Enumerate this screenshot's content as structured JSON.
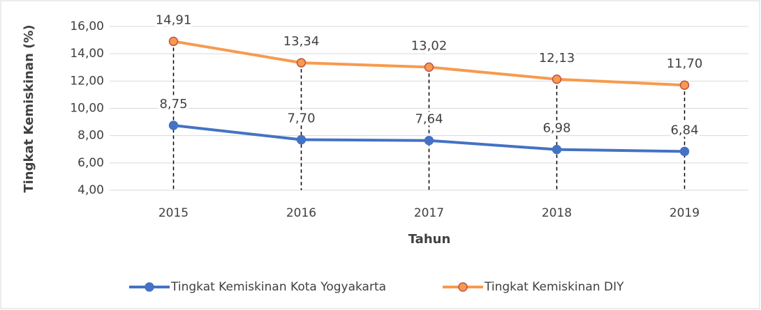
{
  "chart_data": {
    "type": "line",
    "x_label": "Tahun",
    "y_label": "Tingkat Kemiskinan (%)",
    "categories": [
      "2015",
      "2016",
      "2017",
      "2018",
      "2019"
    ],
    "series": [
      {
        "name": "Tingkat Kemiskinan Kota Yogyakarta",
        "color": "#4472c4",
        "values": [
          8.75,
          7.7,
          7.64,
          6.98,
          6.84
        ],
        "value_labels": [
          "8,75",
          "7,70",
          "7,64",
          "6,98",
          "6,84"
        ]
      },
      {
        "name": "Tingkat Kemiskinan DIY",
        "color": "#f79a4d",
        "values": [
          14.91,
          13.34,
          13.02,
          12.13,
          11.7
        ],
        "value_labels": [
          "14,91",
          "13,34",
          "13,02",
          "12,13",
          "11,70"
        ]
      }
    ],
    "ylim": [
      4,
      16
    ],
    "yticks": [
      {
        "value": 4,
        "label": "4,00"
      },
      {
        "value": 6,
        "label": "6,00"
      },
      {
        "value": 8,
        "label": "8,00"
      },
      {
        "value": 10,
        "label": "10,00"
      },
      {
        "value": 12,
        "label": "12,00"
      },
      {
        "value": 14,
        "label": "14,00"
      },
      {
        "value": 16,
        "label": "16,00"
      }
    ],
    "grid": true,
    "legend": "bottom"
  }
}
